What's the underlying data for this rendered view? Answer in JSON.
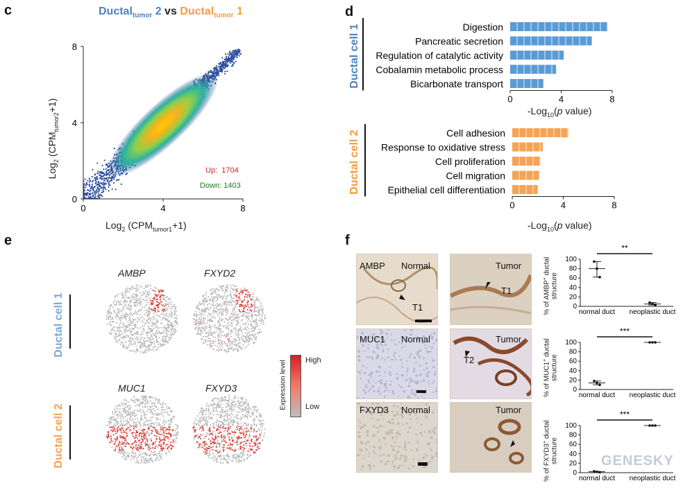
{
  "panels": {
    "c": "c",
    "d": "d",
    "e": "e",
    "f": "f"
  },
  "scatter": {
    "title_left": "Ductal",
    "title_left_sub": "tumor",
    "title_left_num": " 2",
    "title_vs": " vs ",
    "title_right": "Ductal",
    "title_right_sub": "tumor",
    "title_right_num": " 1",
    "xlabel_pre": "Log",
    "xlabel_sub": "2",
    "xlabel_mid": " (CPM",
    "xlabel_sub2": "tumor1",
    "xlabel_post": "+1)",
    "ylabel_pre": "Log",
    "ylabel_sub": "2",
    "ylabel_mid": " (CPM",
    "ylabel_sub2": "tumor2",
    "ylabel_post": "+1)",
    "up_label": "Up:",
    "up_value": "1704",
    "down_label": "Down:",
    "down_value": "1403",
    "colors": {
      "blue": "#2b4c9b",
      "title_blue": "#4f81bd",
      "title_orange": "#f59b41",
      "up": "#d62020",
      "down": "#1f7a1f"
    }
  },
  "chart_data": [
    {
      "type": "scatter",
      "panel": "c",
      "x_ticks": [
        "0",
        "4",
        "8"
      ],
      "y_ticks": [
        "0",
        "4",
        "8"
      ],
      "xlim": [
        0,
        8
      ],
      "ylim": [
        0,
        8
      ],
      "series": [
        {
          "name": "Up",
          "count": 1704
        },
        {
          "name": "Down",
          "count": 1403
        }
      ]
    },
    {
      "type": "bar",
      "panel": "d1",
      "group": "Ductal cell 1",
      "categories": [
        "Digestion",
        "Pancreatic secretion",
        "Regulation of catalytic activity",
        "Cobalamin metabolic process",
        "Bicarbonate transport"
      ],
      "values": [
        7.6,
        6.4,
        4.2,
        3.6,
        2.6
      ],
      "xlim": [
        0,
        8
      ],
      "x_ticks": [
        "0",
        "4",
        "8"
      ],
      "color": "#5b9bd5"
    },
    {
      "type": "bar",
      "panel": "d2",
      "group": "Ductal cell 2",
      "categories": [
        "Cell adhesion",
        "Response to oxidative stress",
        "Cell proliferation",
        "Cell migration",
        "Epithelial cell differentiation"
      ],
      "values": [
        4.4,
        2.4,
        2.2,
        2.1,
        2.0
      ],
      "xlim": [
        0,
        8
      ],
      "x_ticks": [
        "0",
        "4",
        "8"
      ],
      "color": "#f5a356"
    },
    {
      "type": "scatter",
      "panel": "f1",
      "categories": [
        "normal duct",
        "neoplastic duct"
      ],
      "means": [
        80,
        5
      ],
      "points": [
        [
          95,
          80,
          62
        ],
        [
          8,
          5,
          3
        ]
      ],
      "ylim": [
        0,
        100
      ],
      "y_ticks": [
        "100",
        "80",
        "60",
        "40",
        "20",
        "0"
      ],
      "significance": "**"
    },
    {
      "type": "scatter",
      "panel": "f2",
      "categories": [
        "normal duct",
        "neoplastic duct"
      ],
      "means": [
        14,
        100
      ],
      "points": [
        [
          18,
          14,
          10
        ],
        [
          100,
          100,
          100
        ]
      ],
      "ylim": [
        0,
        100
      ],
      "y_ticks": [
        "100",
        "80",
        "60",
        "40",
        "20",
        "0"
      ],
      "significance": "***"
    },
    {
      "type": "scatter",
      "panel": "f3",
      "categories": [
        "normal duct",
        "neoplastic duct"
      ],
      "means": [
        2,
        100
      ],
      "points": [
        [
          3,
          2,
          1
        ],
        [
          100,
          100,
          100
        ]
      ],
      "ylim": [
        0,
        100
      ],
      "y_ticks": [
        "100",
        "80",
        "60",
        "40",
        "20",
        "0"
      ],
      "significance": "***"
    }
  ],
  "go": {
    "group1": "Ductal cell 1",
    "group2": "Ductal cell 2",
    "xlabel_pre": "-Log",
    "xlabel_sub": "10",
    "xlabel_mid": "(",
    "xlabel_p": "p",
    "xlabel_post": " value)"
  },
  "tsne": {
    "group1": "Ductal cell 1",
    "group2": "Ductal cell 2",
    "genes": [
      "AMBP",
      "FXYD2",
      "MUC1",
      "FXYD3"
    ],
    "legend_title": "Expression level",
    "legend_high": "High",
    "legend_low": "Low"
  },
  "ihc": {
    "rows": [
      {
        "marker": "AMBP",
        "normal": "Normal",
        "tumor": "Tumor",
        "normal_arrow": "T1",
        "tumor_arrow": "T1"
      },
      {
        "marker": "MUC1",
        "normal": "Normal",
        "tumor": "Tumor",
        "tumor_arrow": "T2"
      },
      {
        "marker": "FXYD3",
        "normal": "Normal",
        "tumor": "Tumor"
      }
    ],
    "ylabels": [
      {
        "pre": "% of AMBP",
        "sup": "+",
        "post": " ductal structure"
      },
      {
        "pre": "% of MUC1",
        "sup": "+",
        "post": " ductal structure"
      },
      {
        "pre": "% of FXYD3",
        "sup": "+",
        "post": " ductal structure"
      }
    ]
  },
  "watermark": {
    "brand": "GENESKY"
  }
}
